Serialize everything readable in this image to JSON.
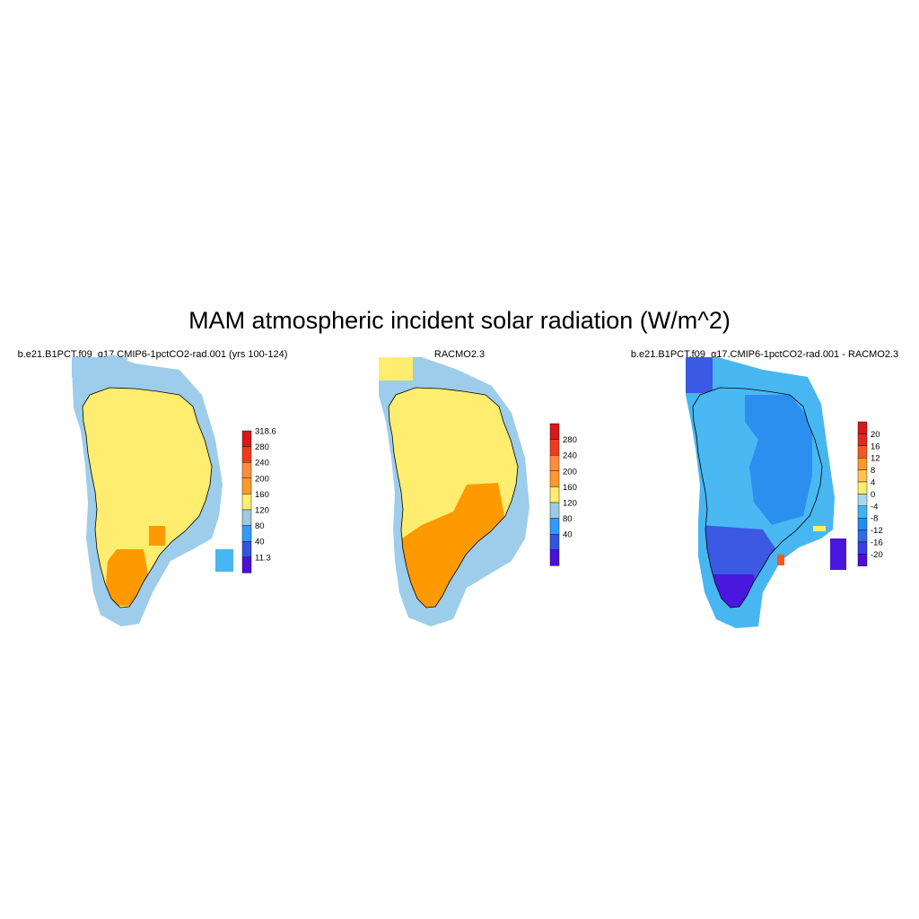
{
  "figure": {
    "title": "MAM atmospheric incident solar radiation (W/m^2)"
  },
  "panels": [
    {
      "id": "model",
      "title": "b.e21.B1PCT.f09_g17.CMIP6-1pctCO2-rad.001 (yrs 100-124)",
      "colorbar": {
        "labels": [
          "318.6",
          "280",
          "240",
          "200",
          "160",
          "120",
          "80",
          "40",
          "11.3"
        ],
        "colors": [
          "#d7191c",
          "#f03b20",
          "#fd8d3c",
          "#fe9929",
          "#ffed6f",
          "#9ecae1",
          "#3399ff",
          "#3355dd",
          "#4b0fd8"
        ]
      }
    },
    {
      "id": "obs",
      "title": "RACMO2.3",
      "colorbar": {
        "labels": [
          "280",
          "240",
          "200",
          "160",
          "120",
          "80",
          "40"
        ],
        "colors": [
          "#d7191c",
          "#f03b20",
          "#fd8d3c",
          "#fe9929",
          "#ffed6f",
          "#9ecae1",
          "#3399ff",
          "#3355dd",
          "#4b0fd8"
        ]
      }
    },
    {
      "id": "diff",
      "title": "b.e21.B1PCT.f09_g17.CMIP6-1pctCO2-rad.001 - RACMO2.3",
      "colorbar": {
        "labels": [
          "20",
          "16",
          "12",
          "8",
          "4",
          "0",
          "-4",
          "-8",
          "-12",
          "-16",
          "-20"
        ],
        "colors": [
          "#d7191c",
          "#e3281e",
          "#f05a22",
          "#fb9a29",
          "#fec44f",
          "#ffed6f",
          "#a6d8f0",
          "#3fb3f2",
          "#1f8fef",
          "#2f6ae8",
          "#3b3fe3",
          "#4b0fd8"
        ]
      }
    }
  ],
  "colors": {
    "yellow": "#ffed6f",
    "orange": "#fe9a00",
    "light_blue": "#9dcdea",
    "sky_blue": "#48b6f0",
    "mid_blue": "#2b8ff0",
    "royal_blue": "#3c59e4",
    "indigo": "#4a17de",
    "coast": "#000000"
  }
}
